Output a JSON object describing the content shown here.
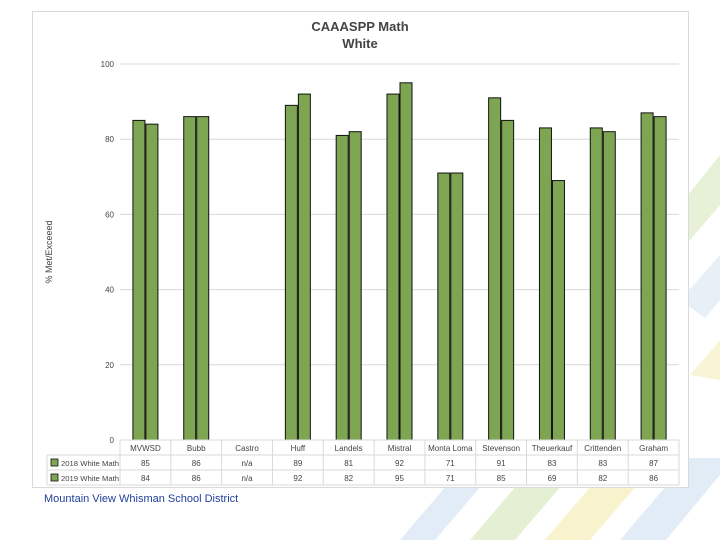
{
  "footer": {
    "text": "Mountain View Whisman School District"
  },
  "colors": {
    "bar": "#7ea652",
    "bar_border": "#111111",
    "grid": "#d9d9d9",
    "text": "#444444"
  },
  "chart_data": {
    "type": "bar",
    "title": "CAAASPP Math",
    "subtitle": "White",
    "xlabel": "",
    "ylabel": "% Met/Exceeed",
    "ylim": [
      0,
      100
    ],
    "yticks": [
      0,
      20,
      40,
      60,
      80,
      100
    ],
    "grid": true,
    "categories": [
      "MVWSD",
      "Bubb",
      "Castro",
      "Huff",
      "Landels",
      "Mistral",
      "Monta Loma",
      "Stevenson",
      "Theuerkauf",
      "Crittenden",
      "Graham"
    ],
    "series": [
      {
        "name": "2018 White Math",
        "values": [
          85,
          86,
          null,
          89,
          81,
          92,
          71,
          91,
          83,
          83,
          87
        ]
      },
      {
        "name": "2019 White Math",
        "values": [
          84,
          86,
          null,
          92,
          82,
          95,
          71,
          85,
          69,
          82,
          86
        ]
      }
    ],
    "table": [
      {
        "legend": "2018 White Math",
        "cells": [
          "85",
          "86",
          "n/a",
          "89",
          "81",
          "92",
          "71",
          "91",
          "83",
          "83",
          "87"
        ]
      },
      {
        "legend": "2019 White Math",
        "cells": [
          "84",
          "86",
          "n/a",
          "92",
          "82",
          "95",
          "71",
          "85",
          "69",
          "82",
          "86"
        ]
      }
    ]
  }
}
